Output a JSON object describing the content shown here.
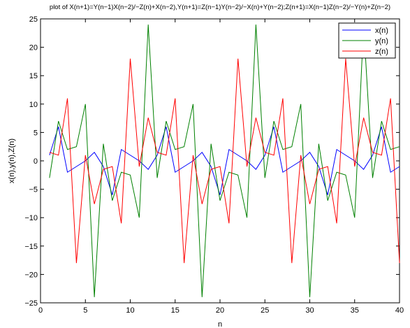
{
  "chart_data": {
    "type": "line",
    "title": "plot of X(n+1)=Y(n−1)X(n−2)/−Z(n)+X(n−2),Y(n+1)=Z(n−1)Y(n−2)/−X(n)+Y(n−2);Z(n+1)=X(n−1)Z(n−2)/−Y(n)+Z(n−2)",
    "xlabel": "n",
    "ylabel": "x(n),y(n),Z(n)",
    "xlim": [
      0,
      40
    ],
    "ylim": [
      -25,
      25
    ],
    "xticks": [
      0,
      5,
      10,
      15,
      20,
      25,
      30,
      35,
      40
    ],
    "yticks": [
      -25,
      -20,
      -15,
      -10,
      -5,
      0,
      5,
      10,
      15,
      20,
      25
    ],
    "xtick_labels": [
      "0",
      "5",
      "10",
      "15",
      "20",
      "25",
      "30",
      "35",
      "40"
    ],
    "ytick_labels": [
      "−25",
      "−20",
      "−15",
      "−10",
      "−5",
      "0",
      "5",
      "10",
      "15",
      "20",
      "25"
    ],
    "grid": false,
    "legend_position": "top-right",
    "x": [
      1,
      2,
      3,
      4,
      5,
      6,
      7,
      8,
      9,
      10,
      11,
      12,
      13,
      14,
      15,
      16,
      17,
      18,
      19,
      20,
      21,
      22,
      23,
      24,
      25,
      26,
      27,
      28,
      29,
      30,
      31,
      32,
      33,
      34,
      35,
      36,
      37,
      38,
      39,
      40
    ],
    "series": [
      {
        "name": "x(n)",
        "color": "#0000ff",
        "values": [
          1.0,
          6.0,
          -2.0,
          -1.0,
          0.0,
          1.5,
          -1.0,
          -6.0,
          2.0,
          1.0,
          0.0,
          -1.5,
          1.0,
          6.0,
          -2.0,
          -1.0,
          0.0,
          1.5,
          -1.0,
          -6.0,
          2.0,
          1.0,
          0.0,
          -1.5,
          1.0,
          6.0,
          -2.0,
          -1.0,
          0.0,
          1.5,
          -1.0,
          -6.0,
          2.0,
          1.0,
          0.0,
          -1.5,
          1.0,
          6.0,
          -2.0,
          -1.0
        ]
      },
      {
        "name": "y(n)",
        "color": "#008000",
        "values": [
          -3.0,
          7.0,
          2.0,
          2.5,
          10.0,
          -24.0,
          3.0,
          -7.0,
          -2.0,
          -2.5,
          -10.0,
          24.0,
          -3.0,
          7.0,
          2.0,
          2.5,
          10.0,
          -24.0,
          3.0,
          -7.0,
          -2.0,
          -2.5,
          -10.0,
          24.0,
          -3.0,
          7.0,
          2.0,
          2.5,
          10.0,
          -24.0,
          3.0,
          -7.0,
          -2.0,
          -2.5,
          -10.0,
          24.0,
          -3.0,
          7.0,
          2.0,
          2.5
        ]
      },
      {
        "name": "z(n)",
        "color": "#ff0000",
        "values": [
          1.5,
          1.0,
          11.0,
          -18.0,
          1.0,
          -7.6,
          -1.5,
          -1.0,
          -11.0,
          18.0,
          -1.0,
          7.6,
          1.5,
          1.0,
          11.0,
          -18.0,
          1.0,
          -7.6,
          -1.5,
          -1.0,
          -11.0,
          18.0,
          -1.0,
          7.6,
          1.5,
          1.0,
          11.0,
          -18.0,
          1.0,
          -7.6,
          -1.5,
          -1.0,
          -11.0,
          18.0,
          -1.0,
          7.6,
          1.5,
          1.0,
          11.0,
          -18.0
        ]
      }
    ]
  }
}
